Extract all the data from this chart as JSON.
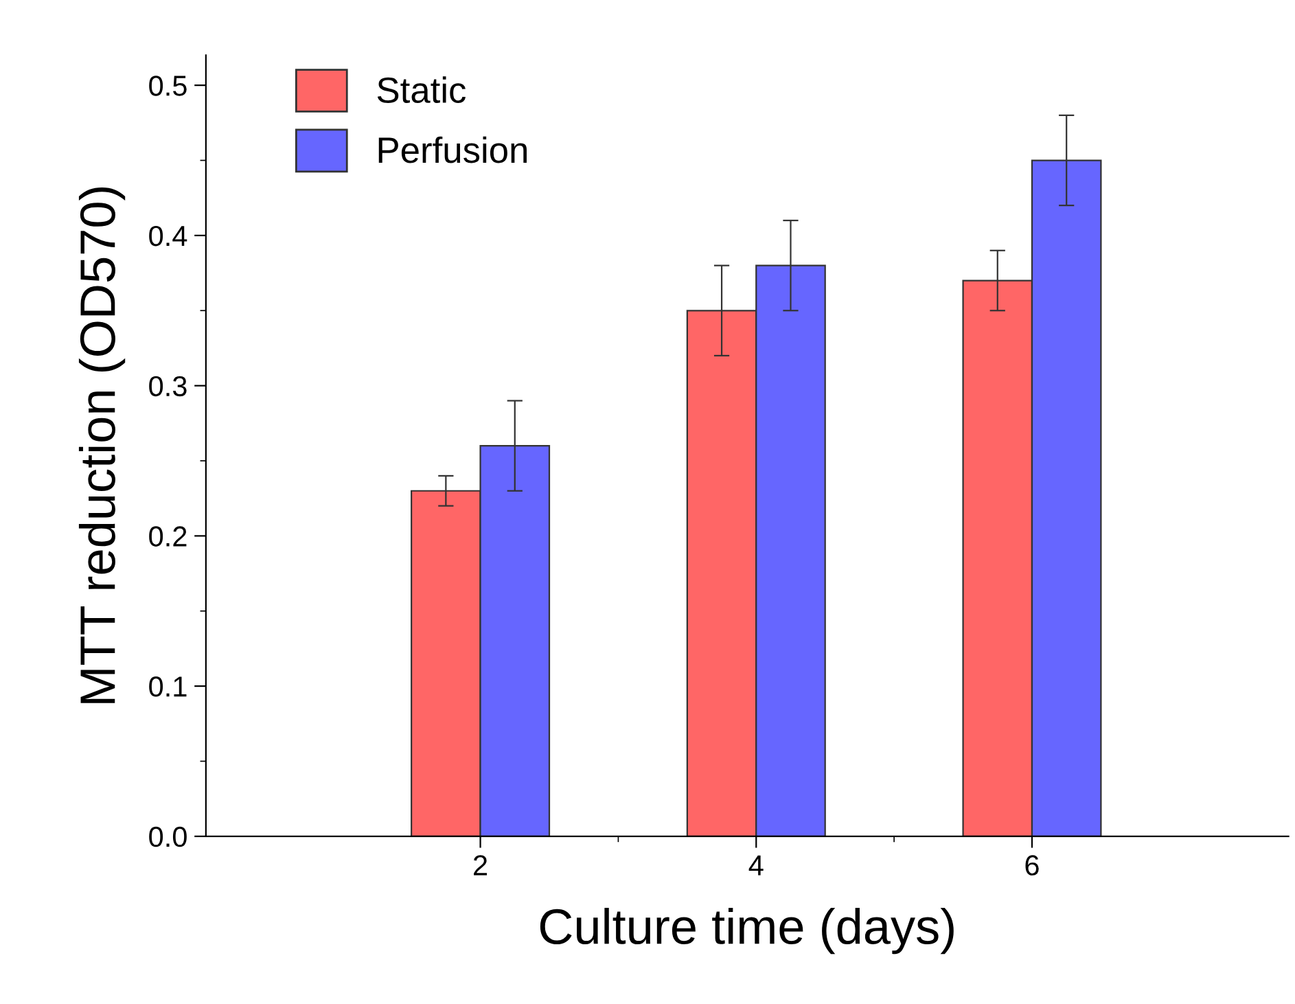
{
  "chart_data": {
    "type": "bar",
    "xlabel": "Culture time (days)",
    "ylabel": "MTT reduction (OD570)",
    "categories": [
      "2",
      "4",
      "6"
    ],
    "series": [
      {
        "name": "Static",
        "color": "#ff6666",
        "values": [
          0.23,
          0.35,
          0.37
        ],
        "errors": [
          0.01,
          0.03,
          0.02
        ]
      },
      {
        "name": "Perfusion",
        "color": "#6666ff",
        "values": [
          0.26,
          0.38,
          0.45
        ],
        "errors": [
          0.03,
          0.03,
          0.03
        ]
      }
    ],
    "ylim": [
      0,
      0.52
    ],
    "yticks": [
      {
        "value": 0,
        "label": "0.0"
      },
      0.1,
      0.2,
      0.3,
      0.4,
      0.5
    ],
    "grid": false,
    "legend": "top left"
  }
}
